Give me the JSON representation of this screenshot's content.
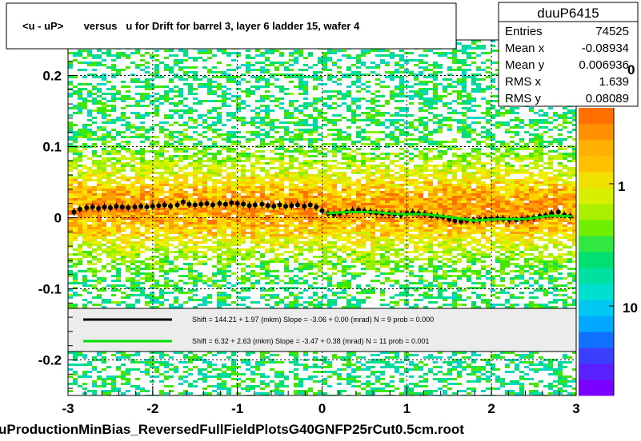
{
  "chart_data": {
    "type": "scatter",
    "title": "<u - uP>       versus   u for Drift for barrel 3, layer 6 ladder 15, wafer 4",
    "footer": "uProductionMinBias_ReversedFullFieldPlotsG40GNFP25rCut0.5cm.root",
    "xlabel": "",
    "ylabel": "",
    "xlim": [
      -3,
      3
    ],
    "ylim": [
      -0.25,
      0.25
    ],
    "x_ticks": [
      "-3",
      "-2",
      "-1",
      "0",
      "1",
      "2",
      "3"
    ],
    "y_ticks": [
      "0.2",
      "0.1",
      "0",
      "-0.1",
      "-0.2"
    ],
    "grid": true,
    "stats": {
      "name": "duuP6415",
      "rows": [
        {
          "label": "Entries",
          "value": "74525"
        },
        {
          "label": "Mean x",
          "value": "-0.08934"
        },
        {
          "label": "Mean y",
          "value": "0.006936"
        },
        {
          "label": "RMS x",
          "value": "1.639"
        },
        {
          "label": "RMS y",
          "value": "0.08089"
        }
      ]
    },
    "colorbar": {
      "labels": [
        "1",
        "10"
      ],
      "partial_label": "0"
    },
    "fits": [
      {
        "color": "#000000",
        "text": "Shift =    144.21 + 1.97 (mkm) Slope =    -3.06 + 0.00 (mrad)  N = 9 prob = 0.000"
      },
      {
        "color": "#00dd00",
        "text": "Shift =     6.32 + 2.63 (mkm) Slope =    -3.47 + 0.38 (mrad)  N = 11 prob = 0.001"
      }
    ],
    "series": [
      {
        "marker": "black-filled-circle",
        "x": [
          -2.93,
          -2.86,
          -2.78,
          -2.71,
          -2.64,
          -2.57,
          -2.5,
          -2.43,
          -2.36,
          -2.29,
          -2.21,
          -2.14,
          -2.07,
          -2.0,
          -1.93,
          -1.86,
          -1.79,
          -1.71,
          -1.64,
          -1.57,
          -1.5,
          -1.43,
          -1.36,
          -1.29,
          -1.21,
          -1.14,
          -1.07,
          -1.0,
          -0.93,
          -0.86,
          -0.79,
          -0.71,
          -0.64,
          -0.57,
          -0.5,
          -0.43,
          -0.36,
          -0.29,
          -0.21,
          -0.14,
          -0.07,
          0.0
        ],
        "y": [
          0.008,
          0.012,
          0.014,
          0.015,
          0.013,
          0.015,
          0.014,
          0.016,
          0.015,
          0.014,
          0.015,
          0.016,
          0.015,
          0.016,
          0.017,
          0.018,
          0.016,
          0.018,
          0.022,
          0.019,
          0.018,
          0.019,
          0.02,
          0.018,
          0.02,
          0.019,
          0.021,
          0.02,
          0.019,
          0.017,
          0.018,
          0.019,
          0.017,
          0.016,
          0.018,
          0.016,
          0.017,
          0.018,
          0.016,
          0.018,
          0.015,
          0.01
        ]
      },
      {
        "marker": "black-filled-circle",
        "x": [
          0.07,
          0.14,
          0.21,
          0.29,
          0.36,
          0.43,
          0.5,
          0.57,
          0.64,
          0.71,
          0.79,
          0.86,
          0.93,
          1.0,
          1.07,
          1.14,
          1.21,
          1.29,
          1.36,
          1.43,
          1.5,
          1.57,
          1.64,
          1.71,
          1.79,
          1.86,
          1.93,
          2.0,
          2.07,
          2.14,
          2.21,
          2.29,
          2.36,
          2.43,
          2.5,
          2.57,
          2.64,
          2.71,
          2.79,
          2.86,
          2.93
        ],
        "y": [
          0.006,
          0.005,
          0.006,
          0.008,
          0.01,
          0.011,
          0.009,
          0.008,
          0.007,
          0.006,
          0.006,
          0.005,
          0.004,
          0.006,
          0.007,
          0.006,
          0.005,
          0.003,
          0.002,
          0.001,
          -0.002,
          -0.004,
          -0.005,
          -0.004,
          -0.004,
          -0.003,
          -0.002,
          -0.002,
          -0.001,
          -0.002,
          -0.003,
          -0.003,
          -0.002,
          -0.001,
          0.0,
          0.002,
          0.003,
          0.006,
          0.008,
          0.004,
          0.002
        ]
      },
      {
        "marker": "green-fit-line",
        "x": [
          0.05,
          0.3,
          0.6,
          0.9,
          1.2,
          1.5,
          1.8,
          2.1,
          2.4,
          2.7,
          2.95
        ],
        "y": [
          0.006,
          0.008,
          0.008,
          0.005,
          0.005,
          0.001,
          -0.004,
          -0.002,
          -0.002,
          0.003,
          0.002
        ]
      }
    ]
  }
}
